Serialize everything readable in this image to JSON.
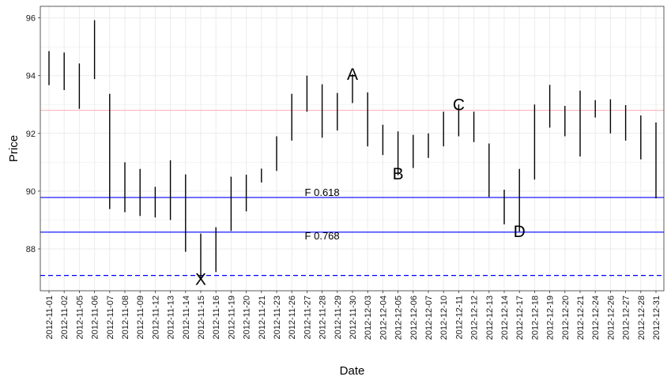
{
  "chart_data": {
    "type": "range-bar",
    "xlabel": "Date",
    "ylabel": "Price",
    "ylim": [
      86.55,
      96.4
    ],
    "y_ticks": [
      88,
      90,
      92,
      94,
      96
    ],
    "grid": true,
    "categories": [
      "2012-11-01",
      "2012-11-02",
      "2012-11-05",
      "2012-11-06",
      "2012-11-07",
      "2012-11-08",
      "2012-11-09",
      "2012-11-12",
      "2012-11-13",
      "2012-11-14",
      "2012-11-15",
      "2012-11-16",
      "2012-11-19",
      "2012-11-20",
      "2012-11-21",
      "2012-11-23",
      "2012-11-26",
      "2012-11-27",
      "2012-11-28",
      "2012-11-29",
      "2012-11-30",
      "2012-12-03",
      "2012-12-04",
      "2012-12-05",
      "2012-12-06",
      "2012-12-07",
      "2012-12-10",
      "2012-12-11",
      "2012-12-12",
      "2012-12-13",
      "2012-12-14",
      "2012-12-17",
      "2012-12-18",
      "2012-12-19",
      "2012-12-20",
      "2012-12-21",
      "2012-12-24",
      "2012-12-26",
      "2012-12-27",
      "2012-12-28",
      "2012-12-31"
    ],
    "low": [
      93.67,
      93.5,
      92.85,
      93.88,
      89.38,
      89.27,
      89.14,
      89.09,
      89.0,
      87.9,
      86.95,
      87.2,
      88.62,
      89.3,
      90.3,
      90.7,
      91.75,
      92.75,
      91.85,
      92.1,
      93.05,
      91.55,
      91.25,
      90.55,
      90.8,
      91.15,
      91.55,
      91.9,
      91.7,
      89.8,
      88.85,
      88.6,
      90.4,
      92.2,
      91.9,
      91.2,
      92.55,
      92.0,
      91.75,
      91.1,
      89.75
    ],
    "high": [
      94.85,
      94.8,
      94.42,
      95.92,
      93.37,
      91.0,
      90.77,
      90.15,
      91.07,
      90.58,
      88.53,
      88.75,
      90.5,
      90.57,
      90.78,
      91.9,
      93.37,
      94.0,
      93.7,
      93.4,
      94.05,
      93.42,
      92.3,
      92.07,
      91.95,
      92.0,
      92.75,
      93.0,
      92.75,
      91.65,
      90.05,
      90.77,
      93.0,
      93.68,
      92.95,
      93.48,
      93.15,
      93.18,
      92.98,
      92.62,
      92.38
    ],
    "hlines": [
      {
        "y": 92.8,
        "color": "#ffb6c1",
        "style": "solid"
      },
      {
        "y": 89.78,
        "color": "#0000ff",
        "style": "solid",
        "label": "F 0.618"
      },
      {
        "y": 88.58,
        "color": "#0000ff",
        "style": "solid",
        "label": "F 0.768"
      },
      {
        "y": 87.08,
        "color": "#0000ff",
        "style": "dashed"
      }
    ],
    "point_labels": [
      {
        "text": "X",
        "date": "2012-11-15",
        "y": 86.95
      },
      {
        "text": "A",
        "date": "2012-11-30",
        "y": 94.05
      },
      {
        "text": "B",
        "date": "2012-12-05",
        "y": 90.6
      },
      {
        "text": "C",
        "date": "2012-12-11",
        "y": 93.0
      },
      {
        "text": "D",
        "date": "2012-12-17",
        "y": 88.6
      }
    ],
    "fib_label_date": "2012-11-28"
  }
}
